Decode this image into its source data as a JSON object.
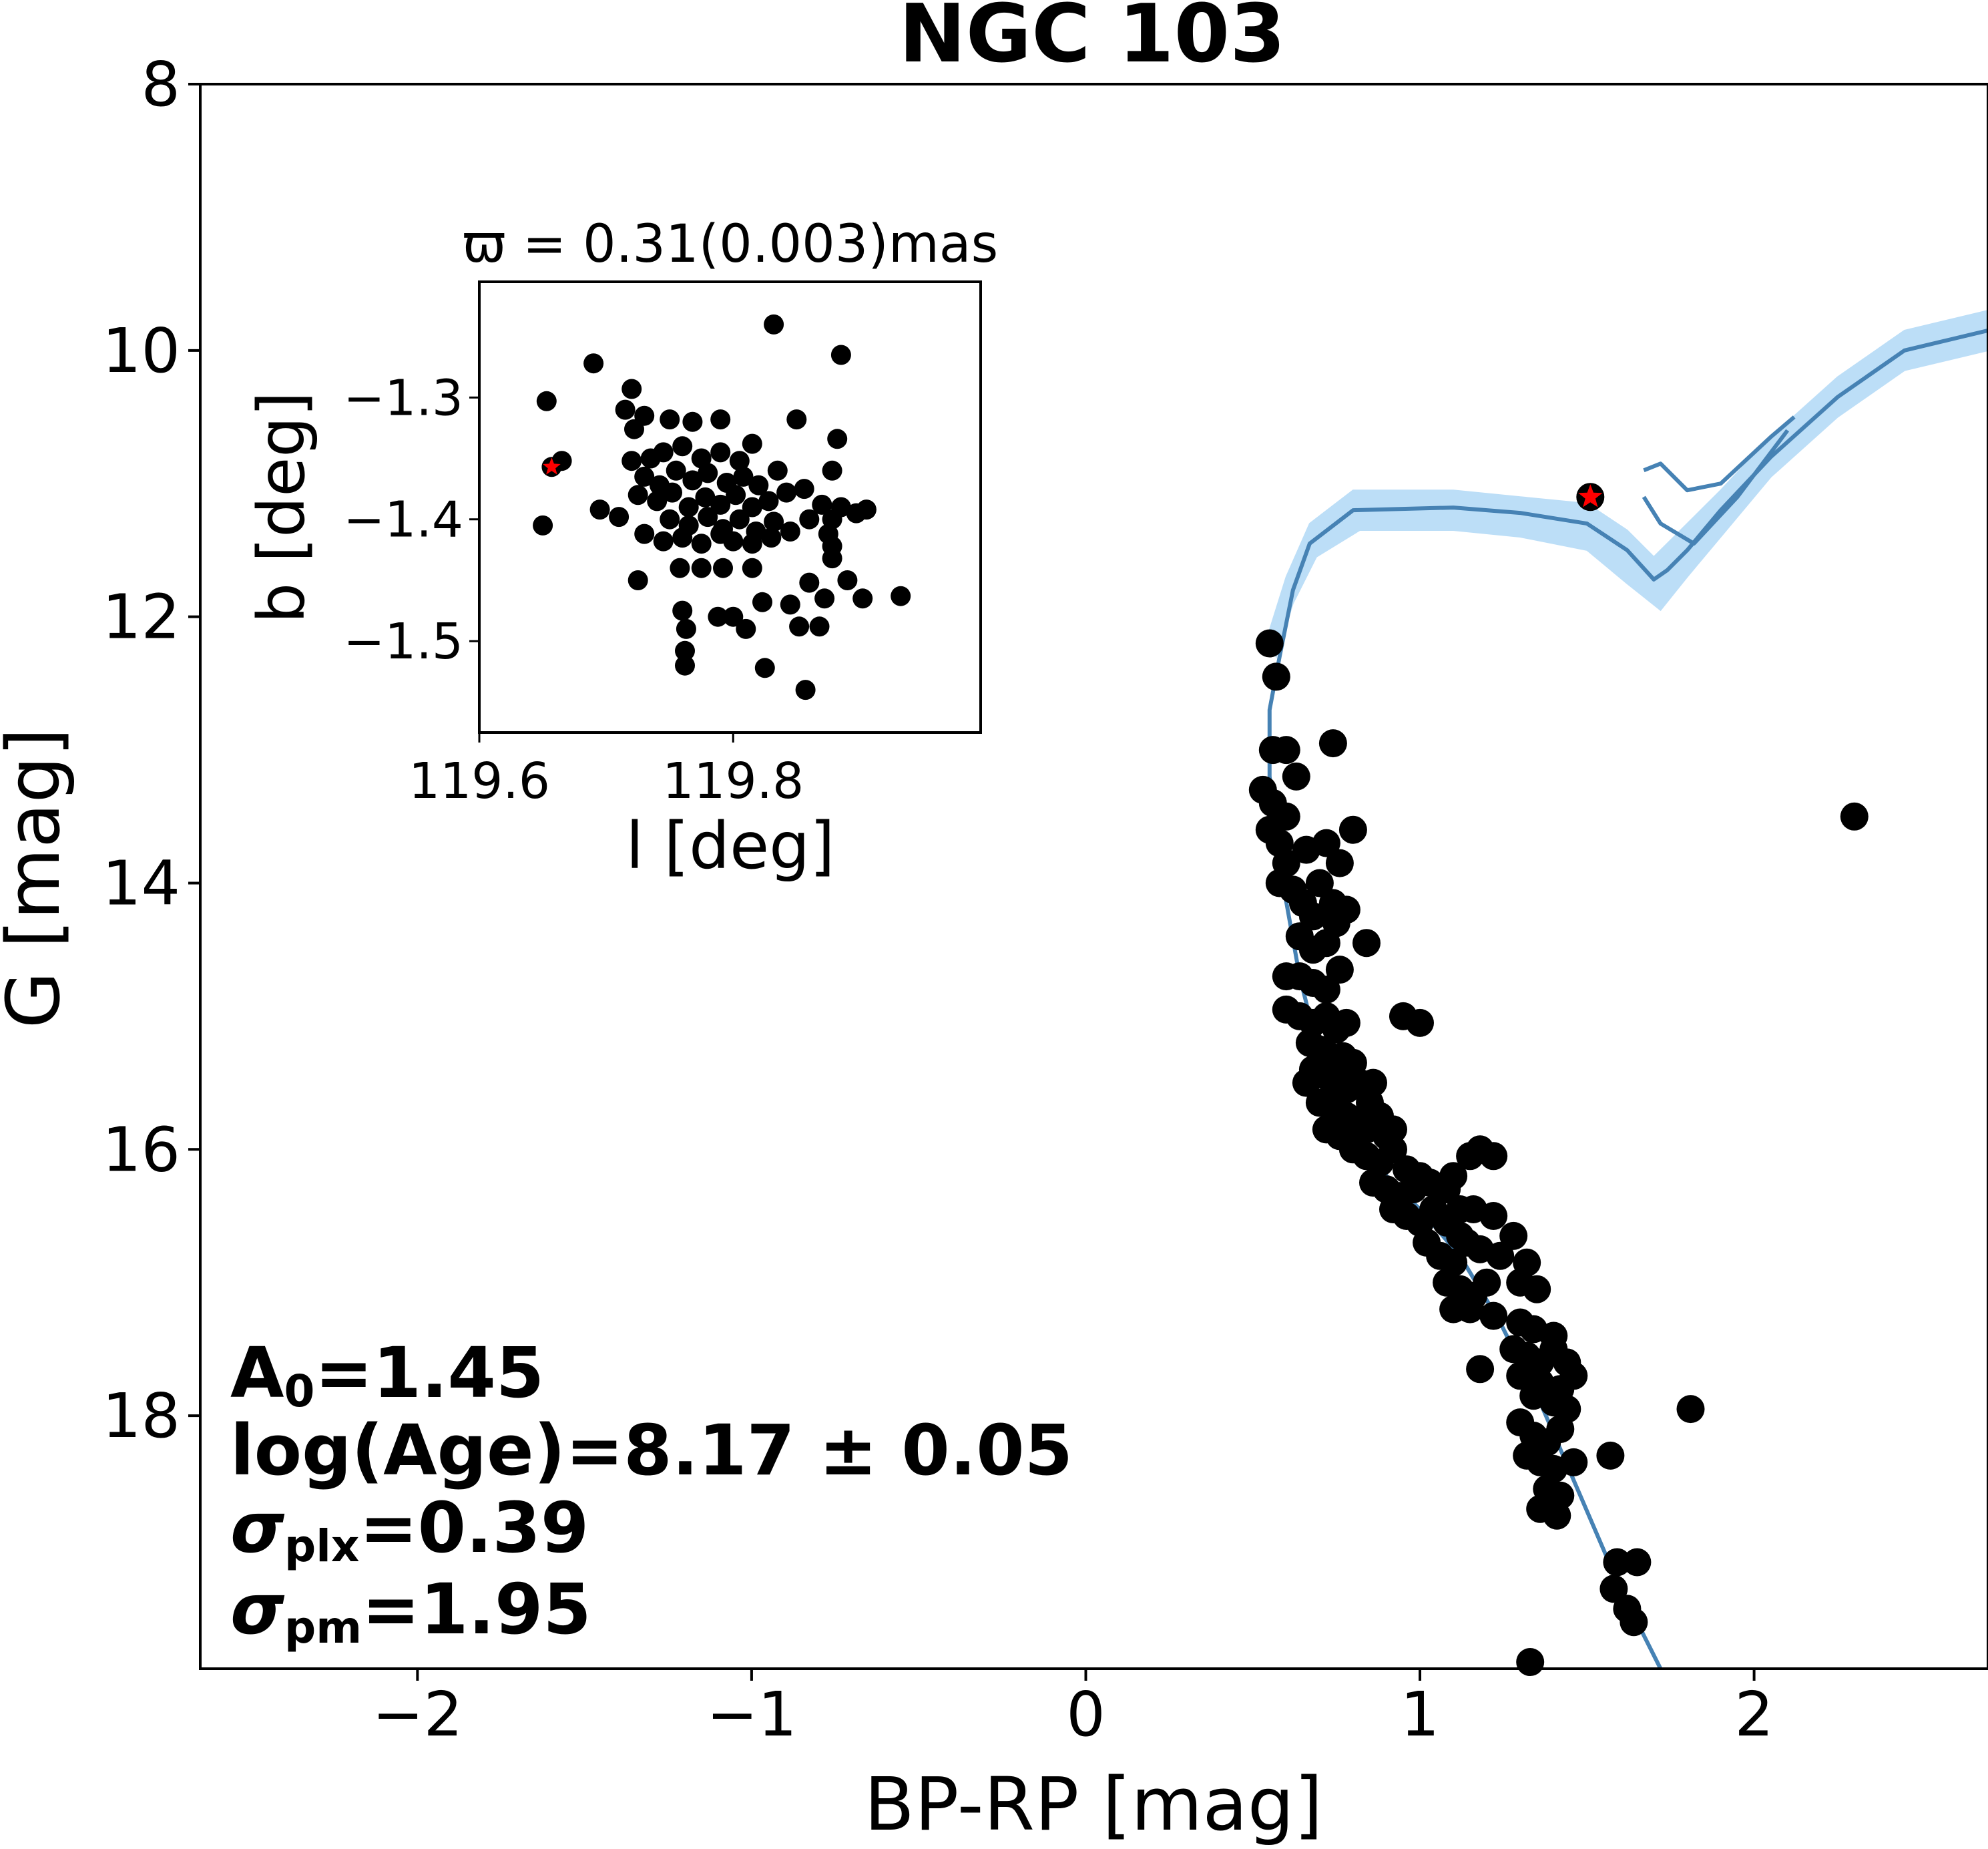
{
  "chart_data": [
    {
      "type": "scatter",
      "title": "NGC 103",
      "xlabel": "BP-RP [mag]",
      "ylabel": "G [mag]",
      "xlim": [
        -2.65,
        2.7
      ],
      "ylim": [
        19.9,
        8.0
      ],
      "y_inverted": true,
      "xticks": [
        -2,
        -1,
        0,
        1,
        2
      ],
      "xtick_labels": [
        "−2",
        "−1",
        "0",
        "1",
        "2"
      ],
      "yticks": [
        8,
        10,
        12,
        14,
        16,
        18
      ],
      "ytick_labels": [
        "8",
        "10",
        "12",
        "14",
        "16",
        "18"
      ],
      "grid": false,
      "colors": {
        "points": "#000000",
        "isochrone": "#4682b4",
        "band": "#a6d3f5",
        "highlight": "#ff0000"
      },
      "annotations": {
        "a0": {
          "main": "A",
          "sub": "0",
          "rest": "=1.45"
        },
        "age": "log(Age)=8.17 ± 0.05",
        "plx": {
          "main": "σ",
          "sub": "plx",
          "rest": "=0.39"
        },
        "pm": {
          "main": "σ",
          "sub": "pm",
          "rest": "=1.95"
        }
      },
      "highlight_star": {
        "x": 1.51,
        "y": 11.1
      },
      "isochrone": {
        "main": [
          [
            1.72,
            19.9
          ],
          [
            1.6,
            19.3
          ],
          [
            1.48,
            18.6
          ],
          [
            1.36,
            17.9
          ],
          [
            1.24,
            17.3
          ],
          [
            1.12,
            16.8
          ],
          [
            1.0,
            16.45
          ],
          [
            0.88,
            16.15
          ],
          [
            0.78,
            15.8
          ],
          [
            0.7,
            15.3
          ],
          [
            0.64,
            14.7
          ],
          [
            0.59,
            14.0
          ],
          [
            0.55,
            13.2
          ],
          [
            0.55,
            12.7
          ],
          [
            0.58,
            12.3
          ],
          [
            0.62,
            11.8
          ],
          [
            0.67,
            11.45
          ],
          [
            0.8,
            11.2
          ],
          [
            1.1,
            11.18
          ],
          [
            1.3,
            11.22
          ],
          [
            1.5,
            11.3
          ],
          [
            1.62,
            11.5
          ],
          [
            1.7,
            11.72
          ],
          [
            1.74,
            11.65
          ],
          [
            1.8,
            11.5
          ],
          [
            1.9,
            11.2
          ],
          [
            2.05,
            10.8
          ],
          [
            2.25,
            10.35
          ],
          [
            2.45,
            10.0
          ],
          [
            2.7,
            9.85
          ]
        ],
        "upper": [
          [
            0.55,
            12.1
          ],
          [
            0.6,
            11.7
          ],
          [
            0.67,
            11.3
          ],
          [
            0.8,
            11.05
          ],
          [
            1.1,
            11.05
          ],
          [
            1.3,
            11.1
          ],
          [
            1.5,
            11.15
          ],
          [
            1.62,
            11.35
          ],
          [
            1.7,
            11.55
          ],
          [
            1.8,
            11.3
          ],
          [
            1.9,
            11.05
          ],
          [
            2.05,
            10.65
          ],
          [
            2.25,
            10.2
          ],
          [
            2.45,
            9.85
          ],
          [
            2.7,
            9.7
          ]
        ],
        "lower": [
          [
            0.57,
            12.3
          ],
          [
            0.62,
            11.9
          ],
          [
            0.69,
            11.55
          ],
          [
            0.82,
            11.35
          ],
          [
            1.1,
            11.35
          ],
          [
            1.3,
            11.4
          ],
          [
            1.5,
            11.5
          ],
          [
            1.62,
            11.75
          ],
          [
            1.72,
            11.95
          ],
          [
            1.8,
            11.7
          ],
          [
            1.9,
            11.4
          ],
          [
            2.05,
            10.95
          ],
          [
            2.25,
            10.5
          ],
          [
            2.45,
            10.15
          ],
          [
            2.7,
            10.0
          ]
        ],
        "branch": [
          [
            1.67,
            10.9
          ],
          [
            1.72,
            10.85
          ],
          [
            1.8,
            11.05
          ],
          [
            1.9,
            11.0
          ],
          [
            2.05,
            10.65
          ],
          [
            2.12,
            10.5
          ]
        ],
        "branch2": [
          [
            1.67,
            11.1
          ],
          [
            1.72,
            11.3
          ],
          [
            1.82,
            11.45
          ],
          [
            1.95,
            11.1
          ],
          [
            2.1,
            10.6
          ]
        ]
      },
      "points": [
        [
          0.55,
          12.2
        ],
        [
          0.57,
          12.45
        ],
        [
          0.53,
          13.3
        ],
        [
          0.56,
          13.0
        ],
        [
          0.6,
          13.0
        ],
        [
          0.56,
          13.4
        ],
        [
          0.6,
          13.5
        ],
        [
          0.63,
          13.2
        ],
        [
          0.74,
          12.95
        ],
        [
          0.55,
          13.6
        ],
        [
          0.58,
          13.7
        ],
        [
          0.6,
          13.85
        ],
        [
          0.66,
          13.75
        ],
        [
          0.72,
          13.7
        ],
        [
          0.76,
          13.85
        ],
        [
          0.8,
          13.6
        ],
        [
          0.58,
          14.0
        ],
        [
          0.62,
          14.05
        ],
        [
          0.65,
          14.15
        ],
        [
          0.68,
          14.25
        ],
        [
          0.7,
          14.0
        ],
        [
          0.74,
          14.15
        ],
        [
          0.78,
          14.2
        ],
        [
          0.64,
          14.4
        ],
        [
          0.68,
          14.5
        ],
        [
          0.72,
          14.45
        ],
        [
          0.75,
          14.3
        ],
        [
          0.84,
          14.45
        ],
        [
          0.6,
          14.7
        ],
        [
          0.64,
          14.7
        ],
        [
          0.68,
          14.75
        ],
        [
          0.72,
          14.8
        ],
        [
          0.76,
          14.65
        ],
        [
          0.6,
          14.95
        ],
        [
          0.64,
          15.0
        ],
        [
          0.68,
          15.05
        ],
        [
          0.72,
          15.0
        ],
        [
          0.75,
          15.1
        ],
        [
          0.78,
          15.05
        ],
        [
          0.95,
          15.0
        ],
        [
          1.0,
          15.05
        ],
        [
          0.67,
          15.2
        ],
        [
          0.7,
          15.25
        ],
        [
          0.73,
          15.3
        ],
        [
          0.77,
          15.3
        ],
        [
          0.8,
          15.35
        ],
        [
          0.68,
          15.4
        ],
        [
          0.72,
          15.45
        ],
        [
          0.75,
          15.5
        ],
        [
          0.66,
          15.5
        ],
        [
          0.78,
          15.55
        ],
        [
          0.82,
          15.5
        ],
        [
          0.86,
          15.5
        ],
        [
          0.7,
          15.65
        ],
        [
          0.74,
          15.7
        ],
        [
          0.78,
          15.75
        ],
        [
          0.82,
          15.8
        ],
        [
          0.85,
          15.65
        ],
        [
          0.88,
          15.75
        ],
        [
          0.72,
          15.85
        ],
        [
          0.76,
          15.9
        ],
        [
          0.8,
          15.95
        ],
        [
          0.84,
          15.85
        ],
        [
          0.9,
          15.9
        ],
        [
          0.92,
          15.85
        ],
        [
          0.8,
          16.0
        ],
        [
          0.84,
          16.05
        ],
        [
          0.88,
          16.1
        ],
        [
          0.92,
          16.0
        ],
        [
          0.96,
          16.15
        ],
        [
          1.0,
          16.2
        ],
        [
          0.86,
          16.25
        ],
        [
          0.9,
          16.3
        ],
        [
          0.94,
          16.35
        ],
        [
          0.98,
          16.3
        ],
        [
          1.03,
          16.25
        ],
        [
          1.08,
          16.3
        ],
        [
          1.1,
          16.2
        ],
        [
          1.15,
          16.05
        ],
        [
          1.18,
          16.0
        ],
        [
          1.22,
          16.05
        ],
        [
          1.12,
          16.45
        ],
        [
          0.92,
          16.45
        ],
        [
          0.96,
          16.5
        ],
        [
          1.0,
          16.55
        ],
        [
          1.04,
          16.45
        ],
        [
          1.08,
          16.55
        ],
        [
          1.12,
          16.65
        ],
        [
          1.16,
          16.45
        ],
        [
          1.22,
          16.5
        ],
        [
          1.02,
          16.7
        ],
        [
          1.06,
          16.8
        ],
        [
          1.1,
          16.85
        ],
        [
          1.14,
          16.7
        ],
        [
          1.18,
          16.75
        ],
        [
          1.24,
          16.8
        ],
        [
          1.28,
          16.65
        ],
        [
          1.32,
          16.85
        ],
        [
          1.08,
          17.0
        ],
        [
          1.12,
          17.05
        ],
        [
          1.16,
          17.1
        ],
        [
          1.2,
          17.0
        ],
        [
          1.3,
          17.0
        ],
        [
          1.35,
          17.05
        ],
        [
          1.1,
          17.2
        ],
        [
          1.15,
          17.2
        ],
        [
          1.22,
          17.25
        ],
        [
          1.3,
          17.3
        ],
        [
          1.34,
          17.35
        ],
        [
          1.4,
          17.4
        ],
        [
          1.28,
          17.5
        ],
        [
          1.32,
          17.55
        ],
        [
          1.36,
          17.6
        ],
        [
          1.4,
          17.5
        ],
        [
          1.44,
          17.6
        ],
        [
          1.18,
          17.65
        ],
        [
          1.3,
          17.7
        ],
        [
          1.36,
          17.75
        ],
        [
          1.42,
          17.8
        ],
        [
          1.46,
          17.7
        ],
        [
          1.34,
          17.85
        ],
        [
          1.4,
          17.9
        ],
        [
          1.44,
          17.95
        ],
        [
          1.3,
          18.05
        ],
        [
          1.34,
          18.15
        ],
        [
          1.38,
          18.2
        ],
        [
          1.42,
          18.1
        ],
        [
          1.32,
          18.3
        ],
        [
          1.36,
          18.35
        ],
        [
          1.4,
          18.4
        ],
        [
          1.46,
          18.35
        ],
        [
          1.38,
          18.55
        ],
        [
          1.42,
          18.6
        ],
        [
          1.36,
          18.7
        ],
        [
          1.41,
          18.75
        ],
        [
          1.81,
          17.95
        ],
        [
          1.57,
          18.3
        ],
        [
          1.59,
          19.1
        ],
        [
          1.65,
          19.1
        ],
        [
          1.58,
          19.3
        ],
        [
          1.62,
          19.45
        ],
        [
          1.64,
          19.55
        ],
        [
          1.33,
          19.85
        ],
        [
          2.3,
          13.5
        ],
        [
          1.51,
          11.1
        ]
      ]
    },
    {
      "type": "scatter",
      "title": "ϖ = 0.31(0.003)mas",
      "xlabel": "l [deg]",
      "ylabel": "b [deg]",
      "xlim": [
        119.6,
        119.995
      ],
      "ylim": [
        -1.575,
        -1.205
      ],
      "xticks": [
        119.6,
        119.8
      ],
      "xtick_labels": [
        "119.6",
        "119.8"
      ],
      "yticks": [
        -1.3,
        -1.4,
        -1.5
      ],
      "ytick_labels": [
        "−1.3",
        "−1.4",
        "−1.5"
      ],
      "grid": false,
      "highlight_star": {
        "x": 119.657,
        "y": -1.357
      },
      "points": [
        [
          119.832,
          -1.24
        ],
        [
          119.885,
          -1.265
        ],
        [
          119.69,
          -1.272
        ],
        [
          119.653,
          -1.303
        ],
        [
          119.72,
          -1.293
        ],
        [
          119.665,
          -1.352
        ],
        [
          119.65,
          -1.405
        ],
        [
          119.695,
          -1.392
        ],
        [
          119.71,
          -1.398
        ],
        [
          119.715,
          -1.31
        ],
        [
          119.722,
          -1.326
        ],
        [
          119.73,
          -1.315
        ],
        [
          119.75,
          -1.318
        ],
        [
          119.768,
          -1.32
        ],
        [
          119.79,
          -1.318
        ],
        [
          119.85,
          -1.318
        ],
        [
          119.882,
          -1.334
        ],
        [
          119.72,
          -1.352
        ],
        [
          119.735,
          -1.35
        ],
        [
          119.745,
          -1.345
        ],
        [
          119.76,
          -1.34
        ],
        [
          119.775,
          -1.35
        ],
        [
          119.79,
          -1.345
        ],
        [
          119.805,
          -1.352
        ],
        [
          119.815,
          -1.338
        ],
        [
          119.73,
          -1.365
        ],
        [
          119.742,
          -1.372
        ],
        [
          119.755,
          -1.36
        ],
        [
          119.768,
          -1.368
        ],
        [
          119.78,
          -1.362
        ],
        [
          119.795,
          -1.37
        ],
        [
          119.808,
          -1.365
        ],
        [
          119.82,
          -1.372
        ],
        [
          119.835,
          -1.36
        ],
        [
          119.878,
          -1.36
        ],
        [
          119.725,
          -1.38
        ],
        [
          119.74,
          -1.385
        ],
        [
          119.752,
          -1.378
        ],
        [
          119.765,
          -1.39
        ],
        [
          119.778,
          -1.382
        ],
        [
          119.79,
          -1.388
        ],
        [
          119.802,
          -1.38
        ],
        [
          119.815,
          -1.39
        ],
        [
          119.828,
          -1.385
        ],
        [
          119.842,
          -1.378
        ],
        [
          119.856,
          -1.375
        ],
        [
          119.87,
          -1.388
        ],
        [
          119.885,
          -1.39
        ],
        [
          119.75,
          -1.4
        ],
        [
          119.765,
          -1.405
        ],
        [
          119.78,
          -1.398
        ],
        [
          119.792,
          -1.408
        ],
        [
          119.805,
          -1.4
        ],
        [
          119.818,
          -1.41
        ],
        [
          119.832,
          -1.402
        ],
        [
          119.845,
          -1.41
        ],
        [
          119.86,
          -1.4
        ],
        [
          119.878,
          -1.4
        ],
        [
          119.897,
          -1.395
        ],
        [
          119.905,
          -1.392
        ],
        [
          119.875,
          -1.412
        ],
        [
          119.73,
          -1.412
        ],
        [
          119.745,
          -1.418
        ],
        [
          119.76,
          -1.415
        ],
        [
          119.775,
          -1.42
        ],
        [
          119.79,
          -1.412
        ],
        [
          119.8,
          -1.418
        ],
        [
          119.815,
          -1.42
        ],
        [
          119.83,
          -1.415
        ],
        [
          119.758,
          -1.44
        ],
        [
          119.775,
          -1.44
        ],
        [
          119.792,
          -1.44
        ],
        [
          119.815,
          -1.44
        ],
        [
          119.878,
          -1.422
        ],
        [
          119.878,
          -1.432
        ],
        [
          119.86,
          -1.452
        ],
        [
          119.89,
          -1.45
        ],
        [
          119.76,
          -1.475
        ],
        [
          119.788,
          -1.48
        ],
        [
          119.823,
          -1.468
        ],
        [
          119.845,
          -1.47
        ],
        [
          119.872,
          -1.465
        ],
        [
          119.8,
          -1.48
        ],
        [
          119.902,
          -1.465
        ],
        [
          119.725,
          -1.45
        ],
        [
          119.932,
          -1.463
        ],
        [
          119.763,
          -1.49
        ],
        [
          119.81,
          -1.49
        ],
        [
          119.852,
          -1.488
        ],
        [
          119.868,
          -1.488
        ],
        [
          119.762,
          -1.508
        ],
        [
          119.762,
          -1.52
        ],
        [
          119.825,
          -1.522
        ],
        [
          119.857,
          -1.54
        ],
        [
          119.657,
          -1.357
        ]
      ]
    }
  ]
}
